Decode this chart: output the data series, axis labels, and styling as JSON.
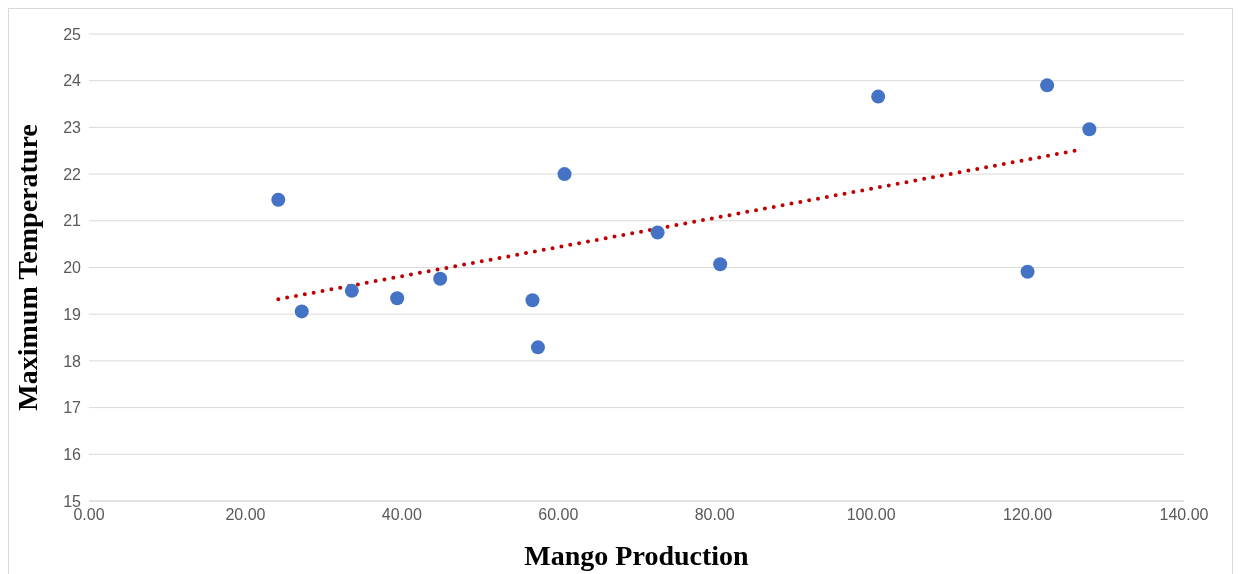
{
  "chart_data": {
    "type": "scatter",
    "xlabel": "Mango Production",
    "ylabel": "Maximum Temperature",
    "xlim": [
      0,
      140
    ],
    "ylim": [
      15,
      25
    ],
    "xticks": [
      {
        "value": 0,
        "label": "0.00"
      },
      {
        "value": 20,
        "label": "20.00"
      },
      {
        "value": 40,
        "label": "40.00"
      },
      {
        "value": 60,
        "label": "60.00"
      },
      {
        "value": 80,
        "label": "80.00"
      },
      {
        "value": 100,
        "label": "100.00"
      },
      {
        "value": 120,
        "label": "120.00"
      },
      {
        "value": 140,
        "label": "140.00"
      }
    ],
    "yticks": [
      15,
      16,
      17,
      18,
      19,
      20,
      21,
      22,
      23,
      24,
      25
    ],
    "grid": "y",
    "marker": "circle",
    "series": [
      {
        "color": "#4472c4",
        "x": [
          24.2,
          27.2,
          33.6,
          39.4,
          44.9,
          56.7,
          57.4,
          60.8,
          72.7,
          80.7,
          100.9,
          120.0,
          122.5,
          127.9
        ],
        "values": [
          21.45,
          19.06,
          19.5,
          19.34,
          19.76,
          19.3,
          18.29,
          22.0,
          20.75,
          20.07,
          23.66,
          19.91,
          23.9,
          22.96
        ]
      },
      {
        "type": "line",
        "color": "#c00000",
        "line_style": "dotted",
        "marker": "none",
        "x": [
          24.2,
          126.7
        ],
        "values": [
          19.32,
          22.52
        ]
      }
    ]
  }
}
